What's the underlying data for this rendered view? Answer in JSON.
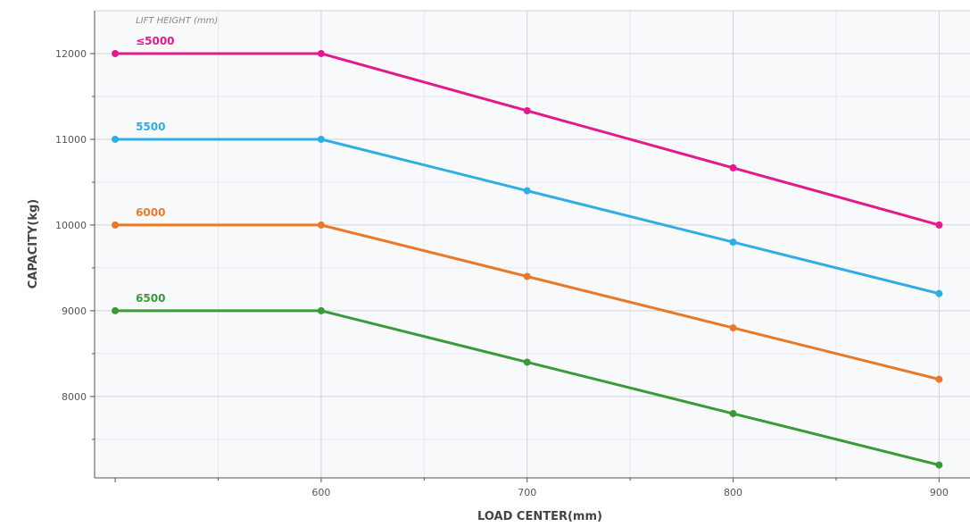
{
  "chart_data": {
    "type": "line",
    "xlabel": "LOAD CENTER(mm)",
    "ylabel": "CAPACITY(kg)",
    "legend_title": "LIFT HEIGHT (mm)",
    "xlim": [
      490,
      915
    ],
    "ylim": [
      7050,
      12500
    ],
    "x_ticks": [
      600,
      700,
      800,
      900
    ],
    "y_ticks": [
      8000,
      9000,
      10000,
      11000,
      12000
    ],
    "grid": true,
    "x": [
      500,
      600,
      700,
      800,
      900
    ],
    "series": [
      {
        "name": "≤5000",
        "color": "#e31a8c",
        "values": [
          12000,
          12000,
          11333,
          10667,
          10000
        ]
      },
      {
        "name": "5500",
        "color": "#2eaee3",
        "values": [
          11000,
          11000,
          10400,
          9800,
          9200
        ]
      },
      {
        "name": "6000",
        "color": "#e8792a",
        "values": [
          10000,
          10000,
          9400,
          8800,
          8200
        ]
      },
      {
        "name": "6500",
        "color": "#3a9a3a",
        "values": [
          9000,
          9000,
          8400,
          7800,
          7200
        ]
      }
    ]
  }
}
